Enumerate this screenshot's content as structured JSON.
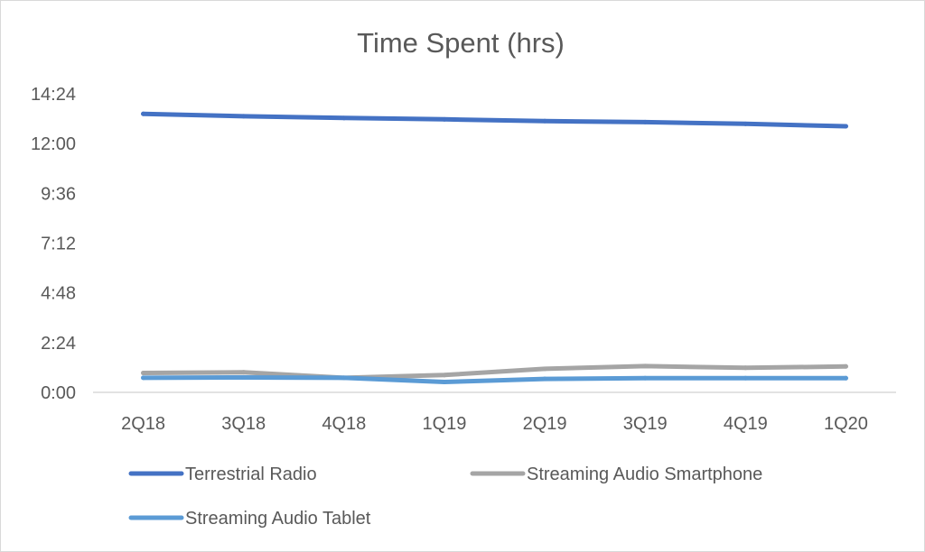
{
  "chart_data": {
    "type": "line",
    "title": "Time Spent (hrs)",
    "xlabel": "",
    "ylabel": "",
    "categories": [
      "2Q18",
      "3Q18",
      "4Q18",
      "1Q19",
      "2Q19",
      "3Q19",
      "4Q19",
      "1Q20"
    ],
    "y_unit": "minutes",
    "ylim": [
      0,
      864
    ],
    "y_ticks": [
      {
        "label": "0:00",
        "value": 0
      },
      {
        "label": "2:24",
        "value": 144
      },
      {
        "label": "4:48",
        "value": 288
      },
      {
        "label": "7:12",
        "value": 432
      },
      {
        "label": "9:36",
        "value": 576
      },
      {
        "label": "12:00",
        "value": 720
      },
      {
        "label": "14:24",
        "value": 864
      }
    ],
    "series": [
      {
        "name": "Terrestrial Radio",
        "color": "#4472c4",
        "values": [
          806,
          799,
          794,
          790,
          785,
          782,
          777,
          770
        ]
      },
      {
        "name": "Streaming Audio Smartphone",
        "color": "#a5a5a5",
        "values": [
          56,
          58,
          42,
          50,
          68,
          76,
          71,
          75
        ]
      },
      {
        "name": "Streaming Audio Tablet",
        "color": "#5b9bd5",
        "values": [
          42,
          43,
          42,
          30,
          39,
          41,
          41,
          41
        ]
      }
    ],
    "grid": false,
    "legend_position": "bottom"
  }
}
